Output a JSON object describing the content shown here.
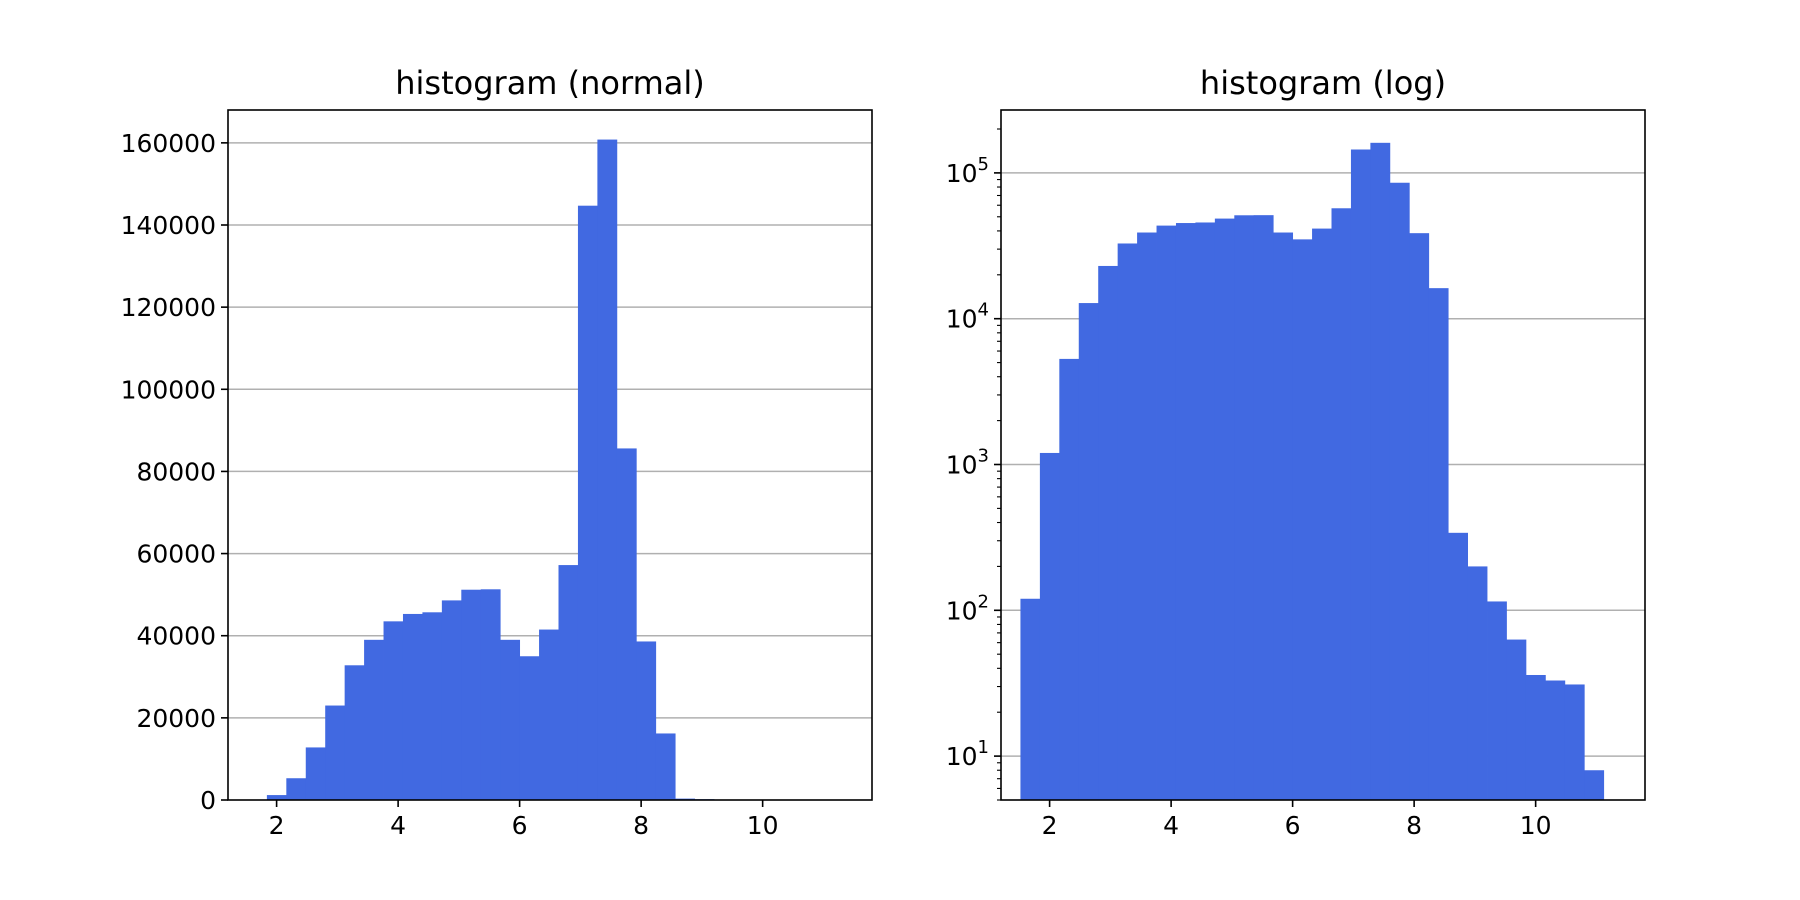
{
  "colors": {
    "bar": "#4169e1",
    "grid": "#b0b0b0",
    "axis": "#000000"
  },
  "chart_data": [
    {
      "type": "bar",
      "title": "histogram (normal)",
      "xlabel": "",
      "ylabel": "",
      "yscale": "linear",
      "grid": "y-major",
      "xlim": [
        1.2,
        11.8
      ],
      "ylim": [
        0,
        168000
      ],
      "x_ticks": [
        2,
        4,
        6,
        8,
        10
      ],
      "x_tick_labels": [
        "2",
        "4",
        "6",
        "8",
        "10"
      ],
      "y_ticks": [
        0,
        20000,
        40000,
        60000,
        80000,
        100000,
        120000,
        140000,
        160000
      ],
      "y_tick_labels": [
        "0",
        "20000",
        "40000",
        "60000",
        "80000",
        "100000",
        "120000",
        "140000",
        "160000"
      ],
      "bin_edges": [
        1.52,
        1.84,
        2.16,
        2.48,
        2.8,
        3.12,
        3.44,
        3.76,
        4.08,
        4.4,
        4.72,
        5.04,
        5.36,
        5.68,
        6.0,
        6.32,
        6.64,
        6.96,
        7.28,
        7.6,
        7.92,
        8.24,
        8.56,
        8.88,
        9.2,
        9.52,
        9.84,
        10.16,
        10.48,
        10.8,
        11.12
      ],
      "values": [
        120,
        1200,
        5300,
        12800,
        23000,
        32800,
        39000,
        43500,
        45300,
        45700,
        48600,
        51200,
        51300,
        39000,
        35000,
        41500,
        57200,
        144700,
        160800,
        85600,
        38600,
        16200,
        340,
        200,
        115,
        63,
        36,
        33,
        31,
        8
      ]
    },
    {
      "type": "bar",
      "title": "histogram (log)",
      "xlabel": "",
      "ylabel": "",
      "yscale": "log",
      "grid": "y-major",
      "xlim": [
        1.2,
        11.8
      ],
      "ylim": [
        5,
        270000
      ],
      "x_ticks": [
        2,
        4,
        6,
        8,
        10
      ],
      "x_tick_labels": [
        "2",
        "4",
        "6",
        "8",
        "10"
      ],
      "y_ticks": [
        10,
        100,
        1000,
        10000,
        100000
      ],
      "y_tick_labels": [
        {
          "base": "10",
          "exp": "1"
        },
        {
          "base": "10",
          "exp": "2"
        },
        {
          "base": "10",
          "exp": "3"
        },
        {
          "base": "10",
          "exp": "4"
        },
        {
          "base": "10",
          "exp": "5"
        }
      ],
      "bin_edges": [
        1.52,
        1.84,
        2.16,
        2.48,
        2.8,
        3.12,
        3.44,
        3.76,
        4.08,
        4.4,
        4.72,
        5.04,
        5.36,
        5.68,
        6.0,
        6.32,
        6.64,
        6.96,
        7.28,
        7.6,
        7.92,
        8.24,
        8.56,
        8.88,
        9.2,
        9.52,
        9.84,
        10.16,
        10.48,
        10.8,
        11.12
      ],
      "values": [
        120,
        1200,
        5300,
        12800,
        23000,
        32800,
        39000,
        43500,
        45300,
        45700,
        48600,
        51200,
        51300,
        39000,
        35000,
        41500,
        57200,
        144700,
        160800,
        85600,
        38600,
        16200,
        340,
        200,
        115,
        63,
        36,
        33,
        31,
        8
      ]
    }
  ]
}
